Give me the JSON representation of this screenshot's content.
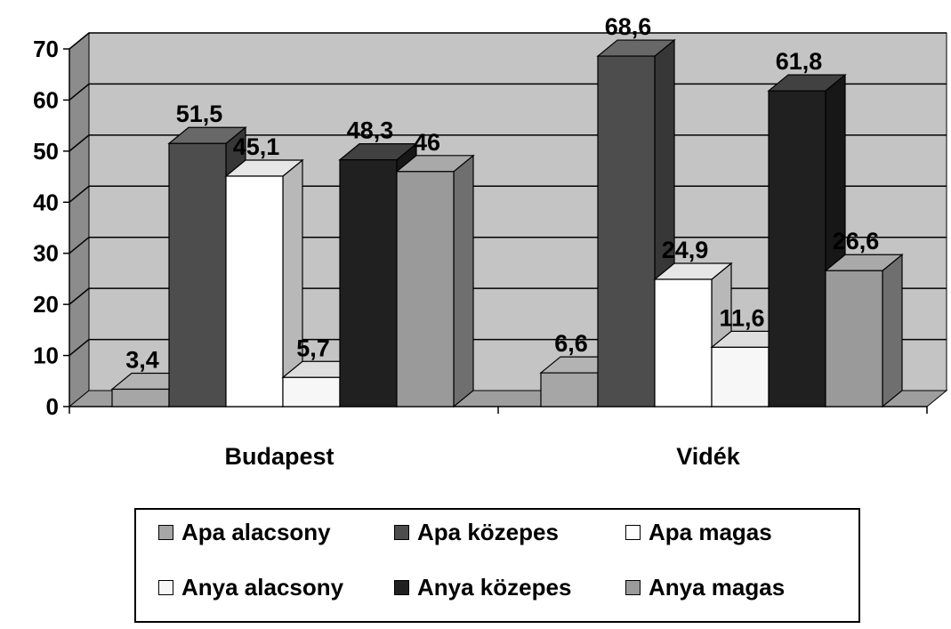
{
  "chart_data": {
    "type": "bar",
    "categories": [
      "Budapest",
      "Vidék"
    ],
    "series": [
      {
        "name": "Apa alacsony",
        "values": [
          3.4,
          6.6
        ],
        "labels": [
          "3,4",
          "6,6"
        ],
        "color": "#a6a6a6"
      },
      {
        "name": "Apa közepes",
        "values": [
          51.5,
          68.6
        ],
        "labels": [
          "51,5",
          "68,6"
        ],
        "color": "#4d4d4d"
      },
      {
        "name": "Apa magas",
        "values": [
          45.1,
          24.9
        ],
        "labels": [
          "45,1",
          "24,9"
        ],
        "color": "#ffffff"
      },
      {
        "name": "Anya alacsony",
        "values": [
          5.7,
          11.6
        ],
        "labels": [
          "5,7",
          "11,6"
        ],
        "color": "#f7f7f7"
      },
      {
        "name": "Anya közepes",
        "values": [
          48.3,
          61.8
        ],
        "labels": [
          "48,3",
          "61,8"
        ],
        "color": "#202020"
      },
      {
        "name": "Anya magas",
        "values": [
          46,
          26.6
        ],
        "labels": [
          "46",
          "26,6"
        ],
        "color": "#9a9a9a"
      }
    ],
    "ylim": [
      0,
      70
    ],
    "yticks": [
      0,
      10,
      20,
      30,
      40,
      50,
      60,
      70
    ],
    "grid": true,
    "style": "3d-clustered-column",
    "legend_position": "bottom",
    "title": "",
    "xlabel": "",
    "ylabel": ""
  }
}
